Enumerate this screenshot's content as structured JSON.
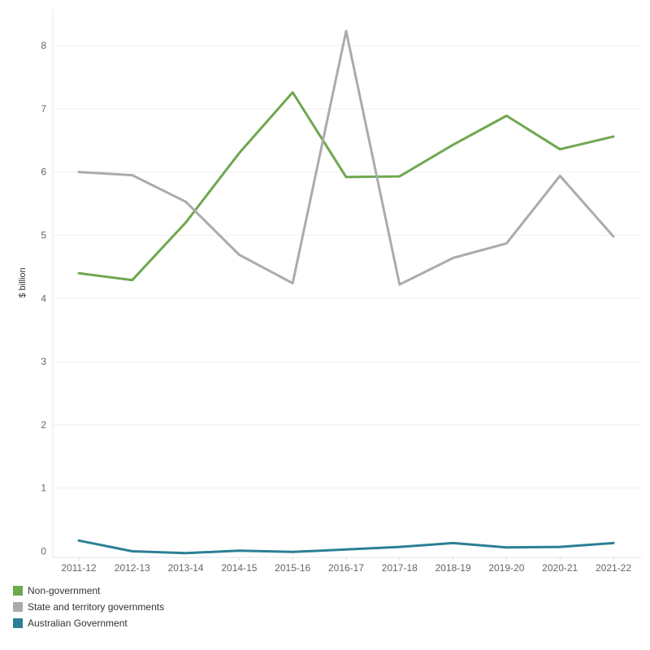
{
  "chart_data": {
    "type": "line",
    "categories": [
      "2011-12",
      "2012-13",
      "2013-14",
      "2014-15",
      "2015-16",
      "2016-17",
      "2017-18",
      "2018-19",
      "2019-20",
      "2020-21",
      "2021-22"
    ],
    "series": [
      {
        "name": "Non-government",
        "color": "#6ea84f",
        "values": [
          4.4,
          4.29,
          5.2,
          6.3,
          7.26,
          5.92,
          5.93,
          6.43,
          6.89,
          6.36,
          6.56
        ]
      },
      {
        "name": "State and territory governments",
        "color": "#a9acad",
        "values": [
          6.0,
          5.95,
          5.53,
          4.69,
          4.24,
          8.23,
          4.22,
          4.64,
          4.87,
          5.94,
          4.98
        ]
      },
      {
        "name": "Australian Government",
        "color": "#2c7f95",
        "values": [
          0.17,
          0.0,
          -0.03,
          0.01,
          -0.01,
          0.03,
          0.07,
          0.13,
          0.06,
          0.07,
          0.13
        ]
      }
    ],
    "ylabel": "$ billion",
    "yticks": [
      0,
      1,
      2,
      3,
      4,
      5,
      6,
      7,
      8
    ],
    "ylim": [
      -0.08,
      8.6
    ],
    "grid": true,
    "legend_position": "bottom-left"
  }
}
